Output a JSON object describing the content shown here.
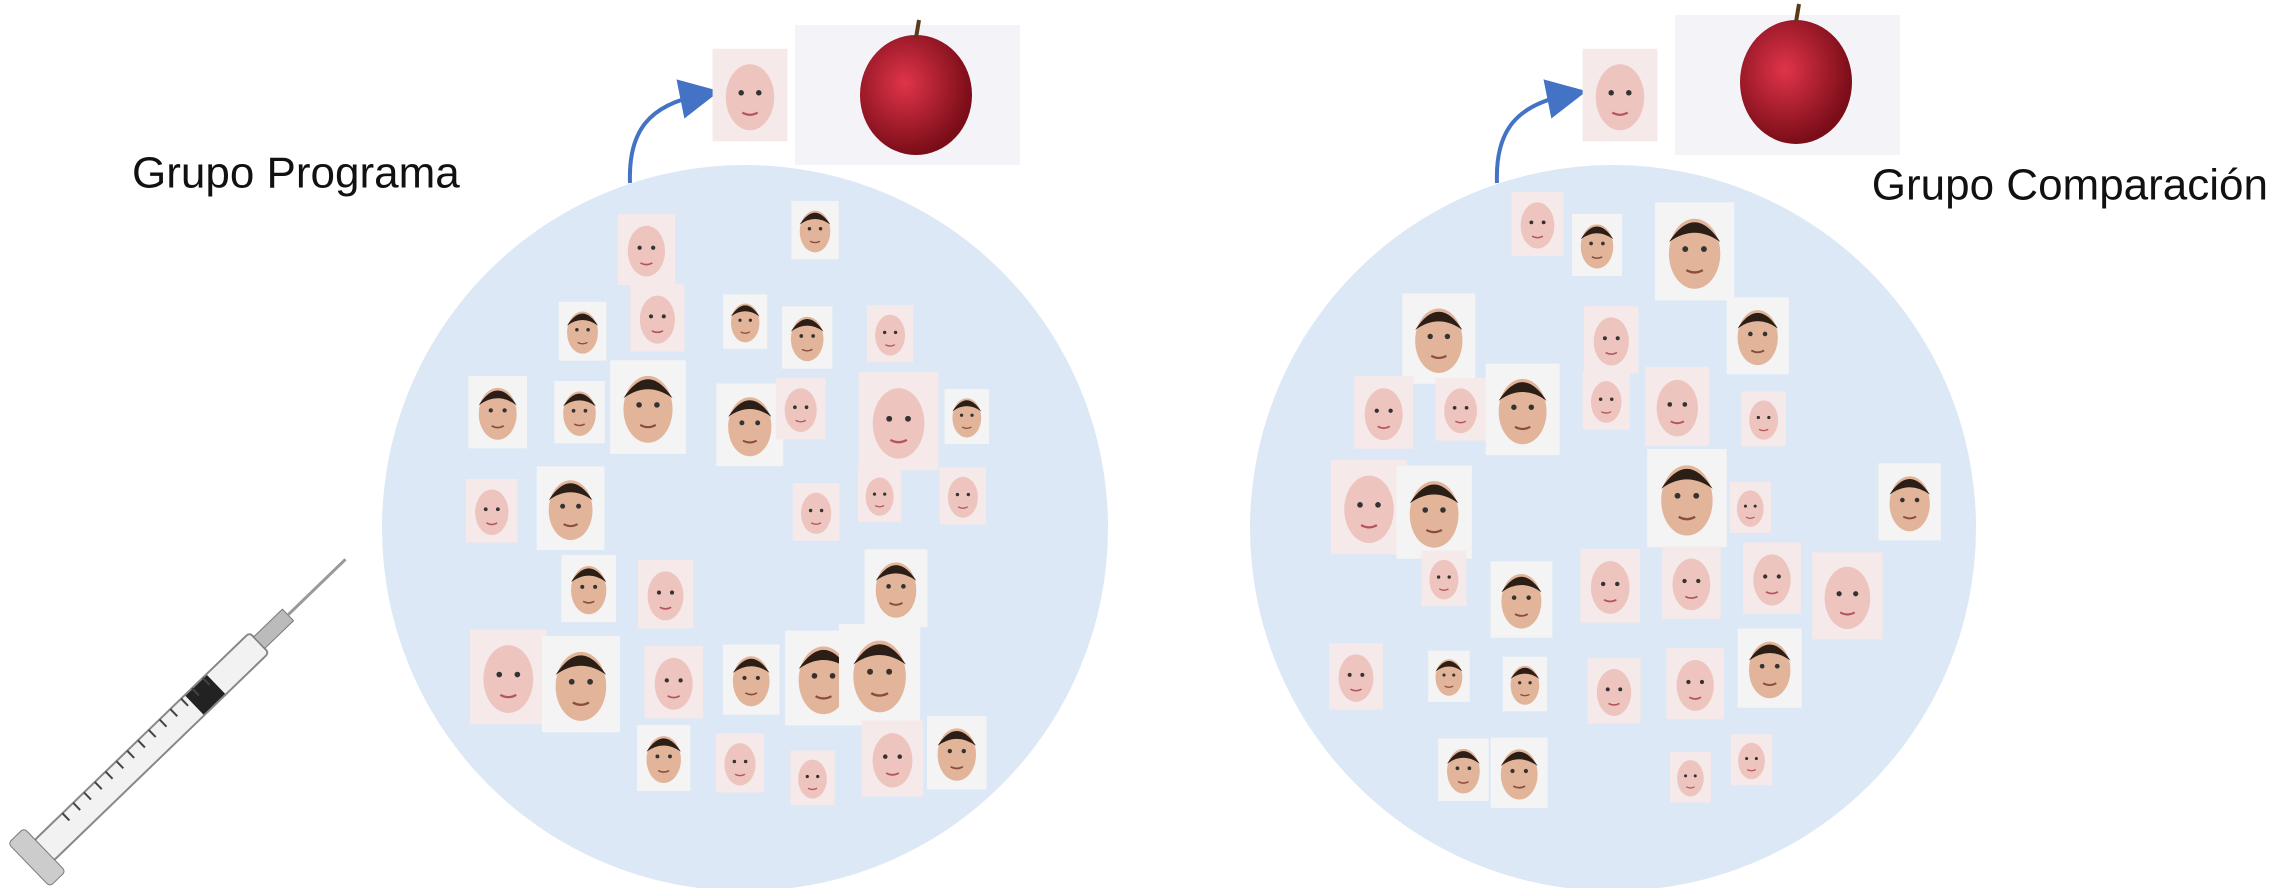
{
  "groups": [
    {
      "label": "Grupo Programa"
    },
    {
      "label": "Grupo Comparación"
    }
  ]
}
